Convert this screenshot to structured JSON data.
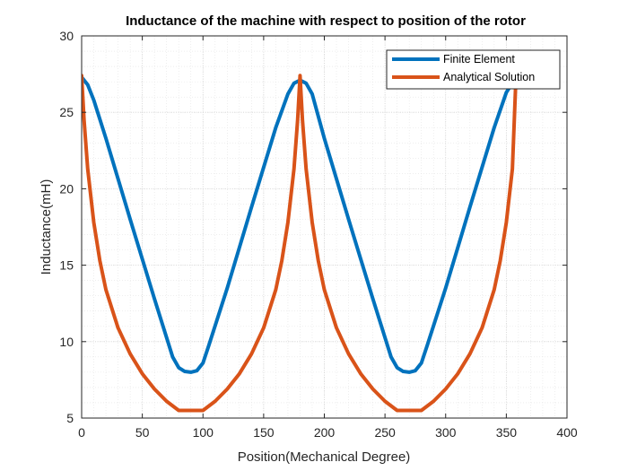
{
  "chart_data": {
    "type": "line",
    "title": "Inductance of the machine with respect to position of the rotor",
    "xlabel": "Position(Mechanical Degree)",
    "ylabel": "Inductance(mH)",
    "xlim": [
      0,
      400
    ],
    "ylim": [
      5,
      30
    ],
    "xticks": [
      0,
      50,
      100,
      150,
      200,
      250,
      300,
      350,
      400
    ],
    "yticks": [
      5,
      10,
      15,
      20,
      25,
      30
    ],
    "grid": "major and minor, dotted",
    "legend_position": "top-right",
    "series": [
      {
        "name": "Finite Element",
        "color": "#0072BD",
        "x": [
          0,
          5,
          10,
          20,
          40,
          60,
          75,
          80,
          85,
          90,
          95,
          100,
          105,
          120,
          140,
          160,
          170,
          175,
          180,
          185,
          190,
          200,
          220,
          240,
          255,
          260,
          265,
          270,
          275,
          280,
          285,
          300,
          320,
          340,
          350,
          358
        ],
        "y": [
          27.3,
          26.8,
          25.8,
          23.3,
          18.0,
          12.8,
          9.0,
          8.3,
          8.05,
          8.0,
          8.1,
          8.6,
          9.8,
          13.5,
          18.8,
          24.0,
          26.2,
          26.9,
          27.1,
          26.9,
          26.2,
          23.3,
          18.0,
          12.8,
          9.0,
          8.3,
          8.05,
          8.0,
          8.1,
          8.6,
          9.8,
          13.5,
          18.8,
          24.0,
          26.3,
          27.3
        ]
      },
      {
        "name": "Analytical Solution",
        "color": "#D95319",
        "x": [
          0,
          2,
          5,
          10,
          15,
          20,
          30,
          40,
          50,
          60,
          70,
          80,
          90,
          100,
          110,
          120,
          130,
          140,
          150,
          160,
          165,
          170,
          175,
          178,
          180,
          182,
          185,
          190,
          195,
          200,
          210,
          220,
          230,
          240,
          250,
          260,
          270,
          280,
          290,
          300,
          310,
          320,
          330,
          340,
          345,
          350,
          355,
          358
        ],
        "y": [
          27.4,
          24.5,
          21.3,
          17.8,
          15.3,
          13.4,
          10.9,
          9.2,
          7.9,
          6.9,
          6.1,
          5.5,
          5.5,
          5.5,
          6.1,
          6.9,
          7.9,
          9.2,
          10.9,
          13.4,
          15.3,
          17.8,
          21.3,
          24.5,
          27.4,
          24.5,
          21.3,
          17.8,
          15.3,
          13.4,
          10.9,
          9.2,
          7.9,
          6.9,
          6.1,
          5.5,
          5.5,
          5.5,
          6.1,
          6.9,
          7.9,
          9.2,
          10.9,
          13.4,
          15.3,
          17.8,
          21.3,
          27.4
        ]
      }
    ]
  }
}
